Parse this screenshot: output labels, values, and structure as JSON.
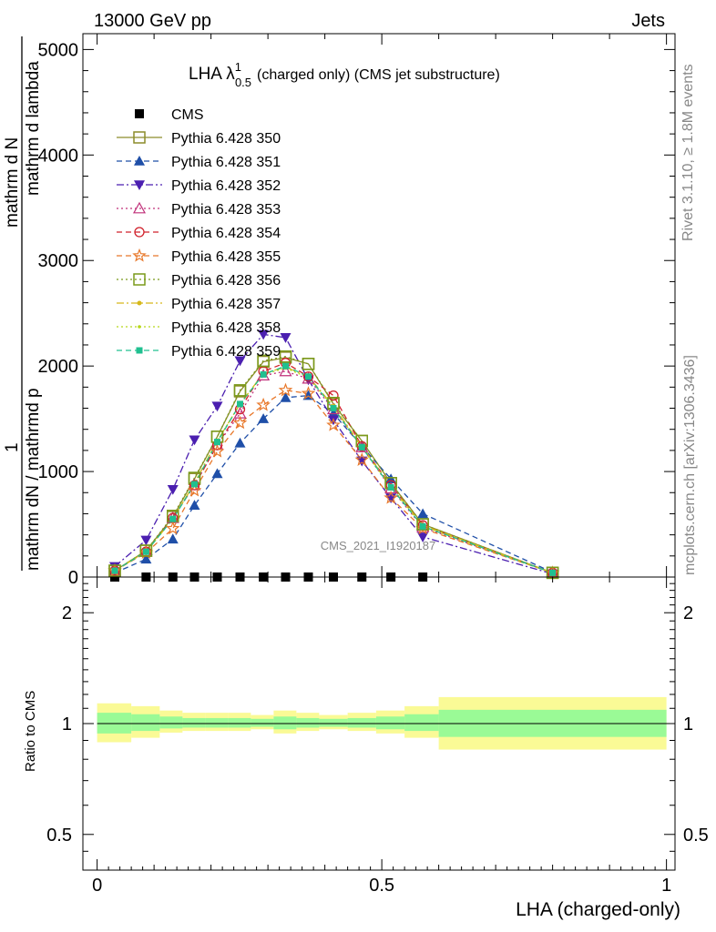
{
  "header": {
    "energy_label": "13000 GeV pp",
    "category_label": "Jets"
  },
  "side_labels": {
    "rivet": "Rivet 3.1.10, ≥ 1.8M events",
    "mcplots": "mcplots.cern.ch [arXiv:1306.3436]"
  },
  "watermark": "CMS_2021_I1920187",
  "chart_data": [
    {
      "type": "line",
      "title": "LHA λ",
      "title_sup": "1",
      "title_sub": "0.5",
      "title_rest": "(charged only) (CMS jet substructure)",
      "ylabel_parts": [
        "1",
        "mathrm d N",
        "mathrm dN / mathrmd p",
        "T",
        "mathrm d p",
        "T",
        "mathrm d lambda",
        "mathrm d",
        "N",
        "mathrm d"
      ],
      "ylabel_text": "1 / mathrm dN  ·  mathrm d²N / mathrm d p_T mathrm d lambda",
      "ylim": [
        0,
        5150
      ],
      "xlim": [
        -0.025,
        1.015
      ],
      "yticks": [
        0,
        1000,
        2000,
        3000,
        4000,
        5000
      ],
      "ytick_labels": [
        "0",
        "1000",
        "2000",
        "3000",
        "4000",
        "5000"
      ],
      "x": [
        0.031,
        0.086,
        0.133,
        0.171,
        0.211,
        0.251,
        0.292,
        0.331,
        0.371,
        0.415,
        0.465,
        0.516,
        0.572,
        0.8
      ],
      "legend_position": "top-left",
      "series": [
        {
          "name": "CMS",
          "color": "#000000",
          "marker": "square-filled",
          "dash": "none",
          "values": [
            0,
            0,
            0,
            0,
            0,
            0,
            0,
            0,
            0,
            0,
            0,
            0,
            0,
            null
          ]
        },
        {
          "name": "Pythia 6.428 350",
          "color": "#8c8c2a",
          "marker": "square-open",
          "dash": "solid",
          "values": [
            60,
            250,
            570,
            930,
            1330,
            1760,
            2040,
            2080,
            2020,
            1640,
            1290,
            890,
            500,
            40
          ]
        },
        {
          "name": "Pythia 6.428 351",
          "color": "#1f4fa8",
          "marker": "triangle-up-filled",
          "dash": "6,4",
          "values": [
            40,
            170,
            360,
            680,
            980,
            1270,
            1500,
            1700,
            1720,
            1550,
            1240,
            930,
            600,
            45
          ]
        },
        {
          "name": "Pythia 6.428 352",
          "color": "#4b1fb0",
          "marker": "triangle-down-filled",
          "dash": "8,3,2,3",
          "values": [
            100,
            350,
            830,
            1300,
            1620,
            2050,
            2300,
            2270,
            1870,
            1490,
            1100,
            750,
            380,
            30
          ]
        },
        {
          "name": "Pythia 6.428 353",
          "color": "#c0307a",
          "marker": "triangle-up-open",
          "dash": "2,3",
          "values": [
            60,
            240,
            560,
            870,
            1250,
            1550,
            1910,
            1950,
            1880,
            1590,
            1230,
            840,
            470,
            40
          ]
        },
        {
          "name": "Pythia 6.428 354",
          "color": "#d0202a",
          "marker": "circle-open",
          "dash": "6,4",
          "values": [
            60,
            240,
            560,
            870,
            1250,
            1590,
            1950,
            2030,
            1900,
            1720,
            1240,
            870,
            490,
            40
          ]
        },
        {
          "name": "Pythia 6.428 355",
          "color": "#e8782a",
          "marker": "star-open",
          "dash": "6,4",
          "values": [
            60,
            230,
            460,
            820,
            1190,
            1460,
            1630,
            1770,
            1740,
            1440,
            1110,
            750,
            460,
            40
          ]
        },
        {
          "name": "Pythia 6.428 356",
          "color": "#7a9a1a",
          "marker": "square-open",
          "dash": "2,3",
          "values": [
            60,
            250,
            580,
            940,
            1330,
            1770,
            2050,
            2090,
            2020,
            1650,
            1290,
            890,
            500,
            40
          ]
        },
        {
          "name": "Pythia 6.428 357",
          "color": "#d6b81a",
          "marker": "dot",
          "dash": "8,3,2,3",
          "values": [
            60,
            240,
            550,
            890,
            1290,
            1640,
            1930,
            1990,
            1900,
            1620,
            1240,
            860,
            490,
            40
          ]
        },
        {
          "name": "Pythia 6.428 358",
          "color": "#b8d81a",
          "marker": "dot-small",
          "dash": "2,3",
          "values": [
            60,
            240,
            550,
            890,
            1290,
            1640,
            1920,
            1980,
            1890,
            1610,
            1230,
            850,
            480,
            40
          ]
        },
        {
          "name": "Pythia 6.428 359",
          "color": "#20c090",
          "marker": "square-small-filled",
          "dash": "6,4",
          "values": [
            60,
            240,
            550,
            880,
            1280,
            1640,
            1920,
            2000,
            1900,
            1600,
            1230,
            850,
            480,
            40
          ]
        }
      ]
    },
    {
      "type": "area",
      "ylabel": "Ratio to CMS",
      "xlabel": "LHA (charged-only)",
      "log_scale_y": true,
      "ylim": [
        0.4,
        2.5
      ],
      "xlim": [
        -0.025,
        1.015
      ],
      "xticks": [
        0,
        0.5,
        1
      ],
      "xtick_labels": [
        "0",
        "0.5",
        "1"
      ],
      "yticks": [
        0.5,
        1,
        2
      ],
      "ytick_labels": [
        "0.5",
        "1",
        "2"
      ],
      "reference_line": 1,
      "bins": [
        {
          "lo": 0.0,
          "hi": 0.06,
          "inner": [
            0.94,
            1.07
          ],
          "outer": [
            0.89,
            1.135
          ]
        },
        {
          "lo": 0.06,
          "hi": 0.11,
          "inner": [
            0.955,
            1.06
          ],
          "outer": [
            0.915,
            1.115
          ]
        },
        {
          "lo": 0.11,
          "hi": 0.15,
          "inner": [
            0.97,
            1.045
          ],
          "outer": [
            0.945,
            1.085
          ]
        },
        {
          "lo": 0.15,
          "hi": 0.19,
          "inner": [
            0.975,
            1.035
          ],
          "outer": [
            0.955,
            1.07
          ]
        },
        {
          "lo": 0.19,
          "hi": 0.23,
          "inner": [
            0.975,
            1.035
          ],
          "outer": [
            0.955,
            1.07
          ]
        },
        {
          "lo": 0.23,
          "hi": 0.27,
          "inner": [
            0.975,
            1.035
          ],
          "outer": [
            0.955,
            1.07
          ]
        },
        {
          "lo": 0.27,
          "hi": 0.31,
          "inner": [
            0.98,
            1.03
          ],
          "outer": [
            0.965,
            1.055
          ]
        },
        {
          "lo": 0.31,
          "hi": 0.35,
          "inner": [
            0.965,
            1.045
          ],
          "outer": [
            0.94,
            1.085
          ]
        },
        {
          "lo": 0.35,
          "hi": 0.39,
          "inner": [
            0.975,
            1.035
          ],
          "outer": [
            0.955,
            1.07
          ]
        },
        {
          "lo": 0.39,
          "hi": 0.44,
          "inner": [
            0.98,
            1.03
          ],
          "outer": [
            0.965,
            1.055
          ]
        },
        {
          "lo": 0.44,
          "hi": 0.49,
          "inner": [
            0.975,
            1.035
          ],
          "outer": [
            0.955,
            1.07
          ]
        },
        {
          "lo": 0.49,
          "hi": 0.54,
          "inner": [
            0.965,
            1.045
          ],
          "outer": [
            0.94,
            1.085
          ]
        },
        {
          "lo": 0.54,
          "hi": 0.6,
          "inner": [
            0.955,
            1.06
          ],
          "outer": [
            0.915,
            1.115
          ]
        },
        {
          "lo": 0.6,
          "hi": 1.0,
          "inner": [
            0.92,
            1.09
          ],
          "outer": [
            0.85,
            1.18
          ]
        }
      ]
    }
  ]
}
